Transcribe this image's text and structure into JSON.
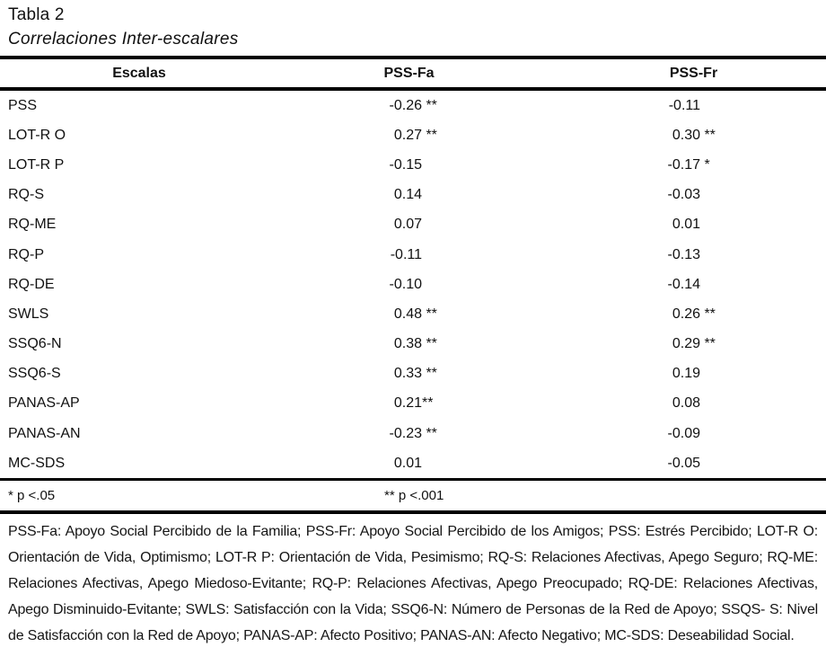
{
  "title": "Tabla 2",
  "subtitle": "Correlaciones Inter-escalares",
  "table": {
    "headers": [
      "Escalas",
      "PSS-Fa",
      "PSS-Fr"
    ],
    "rows": [
      {
        "label": "PSS",
        "fa": "-0.26",
        "fa_star": " **",
        "fr": "-0.11",
        "fr_star": ""
      },
      {
        "label": "LOT-R O",
        "fa": "0.27",
        "fa_star": " **",
        "fr": "0.30",
        "fr_star": " **"
      },
      {
        "label": "LOT-R P",
        "fa": "-0.15",
        "fa_star": "",
        "fr": "-0.17",
        "fr_star": " *"
      },
      {
        "label": "RQ-S",
        "fa": "0.14",
        "fa_star": "",
        "fr": "-0.03",
        "fr_star": ""
      },
      {
        "label": "RQ-ME",
        "fa": "0.07",
        "fa_star": "",
        "fr": "0.01",
        "fr_star": ""
      },
      {
        "label": "RQ-P",
        "fa": "-0.11",
        "fa_star": "",
        "fr": "-0.13",
        "fr_star": ""
      },
      {
        "label": "RQ-DE",
        "fa": "-0.10",
        "fa_star": "",
        "fr": "-0.14",
        "fr_star": ""
      },
      {
        "label": "SWLS",
        "fa": "0.48",
        "fa_star": " **",
        "fr": "0.26",
        "fr_star": " **"
      },
      {
        "label": "SSQ6-N",
        "fa": "0.38",
        "fa_star": " **",
        "fr": "0.29",
        "fr_star": " **"
      },
      {
        "label": "SSQ6-S",
        "fa": "0.33",
        "fa_star": " **",
        "fr": "0.19",
        "fr_star": ""
      },
      {
        "label": "PANAS-AP",
        "fa": "0.21",
        "fa_star": "**",
        "fr": "0.08",
        "fr_star": ""
      },
      {
        "label": "PANAS-AN",
        "fa": "-0.23",
        "fa_star": " **",
        "fr": "-0.09",
        "fr_star": ""
      },
      {
        "label": "MC-SDS",
        "fa": "0.01",
        "fa_star": "",
        "fr": "-0.05",
        "fr_star": ""
      }
    ],
    "footnotes": [
      "* p <.05",
      "** p <.001"
    ]
  },
  "notes": "PSS-Fa: Apoyo Social Percibido de la Familia; PSS-Fr: Apoyo Social Percibido de los Amigos; PSS: Estrés Percibido; LOT-R O: Orientación de Vida, Optimismo; LOT-R P: Orientación de Vida, Pesimismo; RQ-S: Relaciones Afectivas, Apego Seguro; RQ-ME: Relaciones Afectivas, Apego Miedoso-Evitante; RQ-P: Relaciones Afectivas, Apego Preocupado; RQ-DE: Relaciones Afectivas, Apego Disminuido-Evitante; SWLS: Satisfacción con la Vida; SSQ6-N: Número de Personas de la Red de Apoyo; SSQS- S: Nivel de Satisfacción con la Red de Apoyo; PANAS-AP: Afecto Positivo; PANAS-AN: Afecto Negativo; MC-SDS: Deseabilidad Social.",
  "colors": {
    "text": "#111111",
    "background": "#ffffff",
    "rule": "#000000"
  }
}
